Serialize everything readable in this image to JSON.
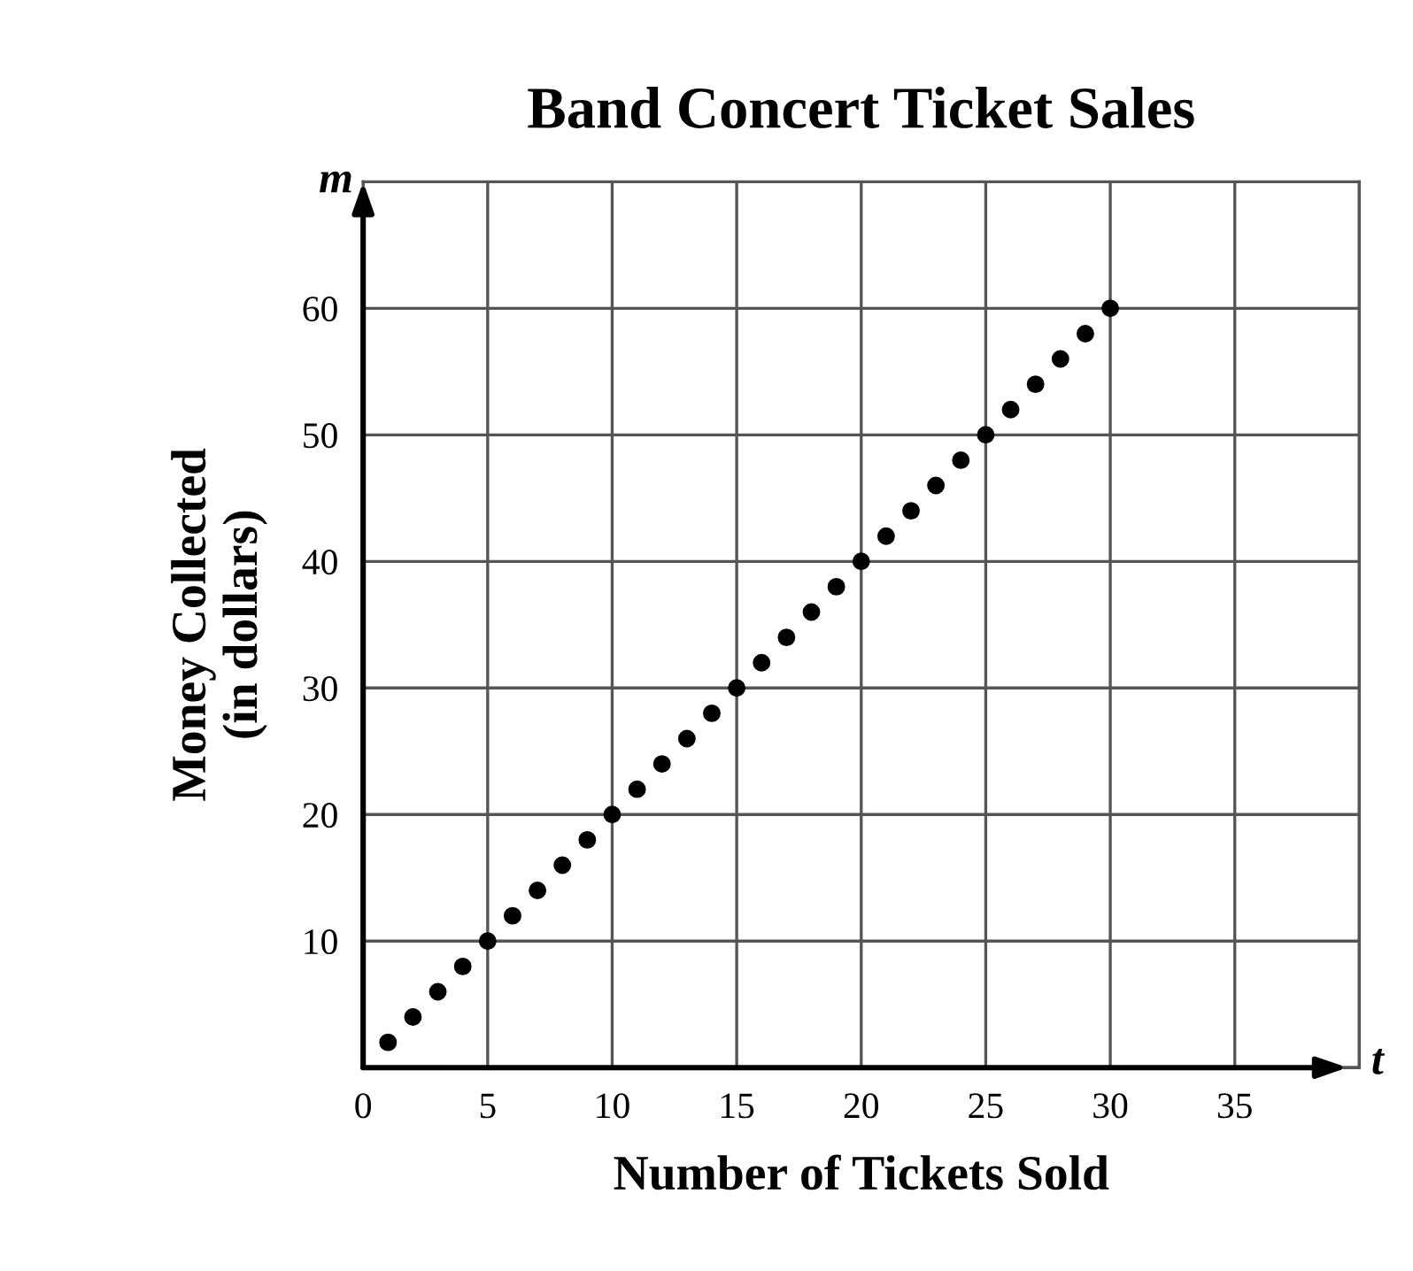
{
  "chart_data": {
    "type": "scatter",
    "title": "Band Concert Ticket Sales",
    "xlabel": "Number of Tickets Sold",
    "ylabel": "Money Collected\n(in dollars)",
    "annotations": [
      "m",
      "t"
    ],
    "x": [
      1,
      2,
      3,
      4,
      5,
      6,
      7,
      8,
      9,
      10,
      11,
      12,
      13,
      14,
      15,
      16,
      17,
      18,
      19,
      20,
      21,
      22,
      23,
      24,
      25,
      26,
      27,
      28,
      29,
      30
    ],
    "series": [
      {
        "color": "#000000",
        "values": [
          2,
          4,
          6,
          8,
          10,
          12,
          14,
          16,
          18,
          20,
          22,
          24,
          26,
          28,
          30,
          32,
          34,
          36,
          38,
          40,
          42,
          44,
          46,
          48,
          50,
          52,
          54,
          56,
          58,
          60
        ]
      }
    ],
    "xlim": [
      0,
      40
    ],
    "ylim": [
      0,
      70
    ],
    "xticks": [
      0,
      5,
      10,
      15,
      20,
      25,
      30,
      35,
      {
        "value": 40,
        "label": null
      }
    ],
    "yticks": [
      {
        "value": 0,
        "label": null
      },
      10,
      20,
      30,
      40,
      50,
      60,
      {
        "value": 70,
        "label": null
      }
    ],
    "grid": true,
    "marker": "circle"
  }
}
